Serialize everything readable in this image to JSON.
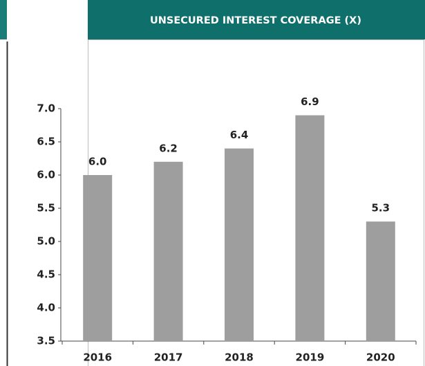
{
  "chart_data": {
    "type": "bar",
    "title": "UNSECURED INTEREST COVERAGE (X)",
    "categories": [
      "2016",
      "2017",
      "2018",
      "2019",
      "2020"
    ],
    "values": [
      6.0,
      6.2,
      6.4,
      6.9,
      5.3
    ],
    "value_labels": [
      "6.0",
      "6.2",
      "6.4",
      "6.9",
      "5.3"
    ],
    "color": "#9e9e9e",
    "ylim": [
      3.5,
      7.0
    ],
    "yticks": [
      {
        "value": 3.5,
        "label": "3.5"
      },
      {
        "value": 4.0,
        "label": "4.0"
      },
      {
        "value": 4.5,
        "label": "4.5"
      },
      {
        "value": 5.0,
        "label": "5.0"
      },
      {
        "value": 5.5,
        "label": "5.5"
      },
      {
        "value": 6.0,
        "label": "6.0"
      },
      {
        "value": 6.5,
        "label": "6.5"
      },
      {
        "value": 7.0,
        "label": "7.0"
      }
    ],
    "grid": false
  }
}
